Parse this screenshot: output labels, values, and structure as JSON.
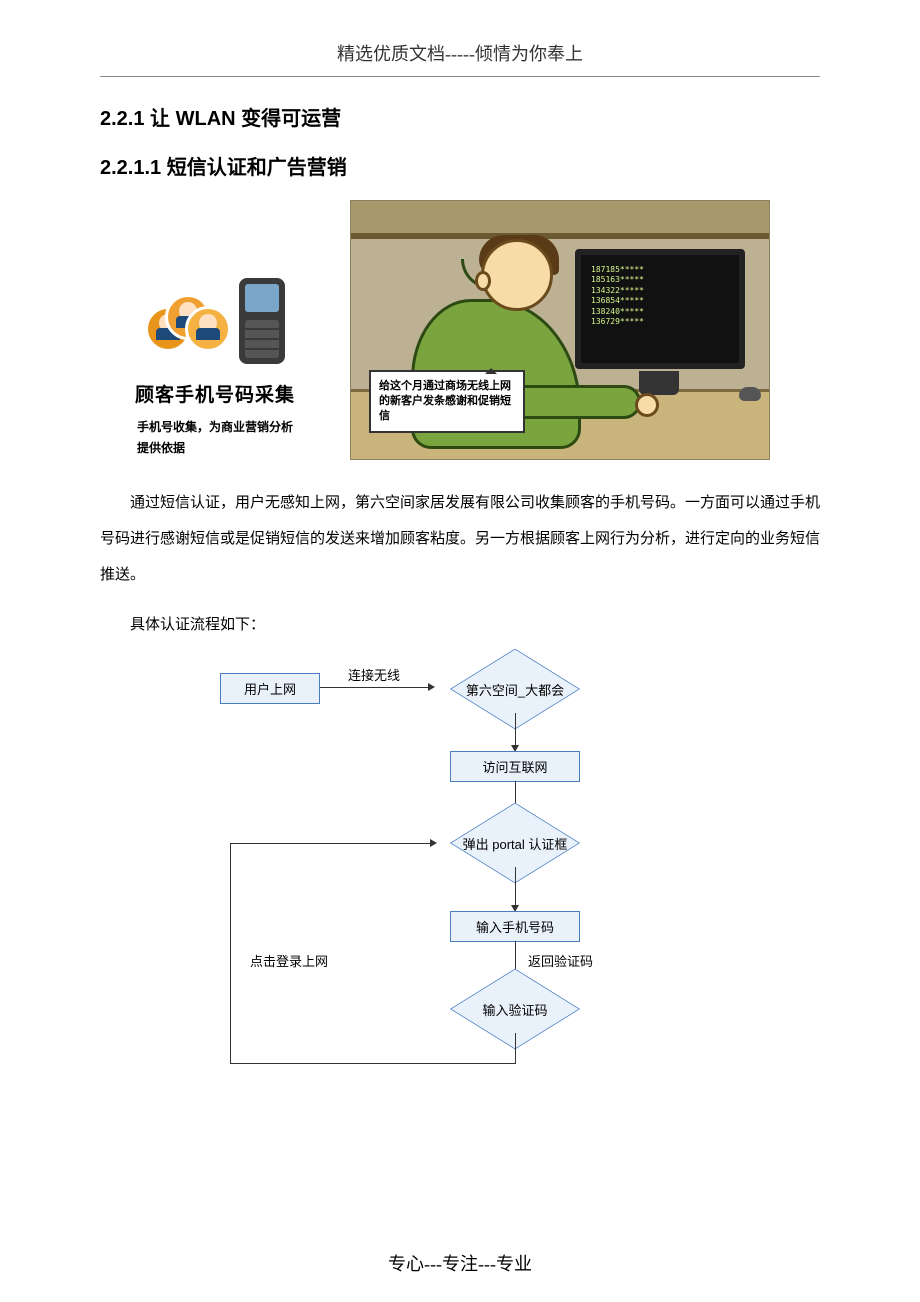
{
  "header": "精选优质文档-----倾情为你奉上",
  "footer": "专心---专注---专业",
  "h1": "2.2.1 让 WLAN 变得可运营",
  "h2": "2.2.1.1 短信认证和广告营销",
  "leftPanel": {
    "title": "顾客手机号码采集",
    "sub": "手机号收集，为商业营销分析\n提供依据"
  },
  "screenLines": "187185*****\n185163*****\n134322*****\n136854*****\n138240*****\n136729*****",
  "speech": "给这个月通过商场无线上网的新客户发条感谢和促销短信",
  "para1": "通过短信认证，用户无感知上网，第六空间家居发展有限公司收集顾客的手机号码。一方面可以通过手机号码进行感谢短信或是促销短信的发送来增加顾客粘度。另一方根据顾客上网行为分析，进行定向的业务短信推送。",
  "para2": "具体认证流程如下：",
  "flow": {
    "n1": "用户上网",
    "e1": "连接无线",
    "d1": "第六空间_大都会",
    "n2": "访问互联网",
    "d2": "弹出 portal 认证框",
    "n3": "输入手机号码",
    "e2": "返回验证码",
    "d3": "输入验证码",
    "e3": "点击登录上网",
    "colors": {
      "node_fill": "#e9f1fb",
      "node_border": "#4a7dbf",
      "arrow": "#333333",
      "text": "#000000"
    }
  }
}
